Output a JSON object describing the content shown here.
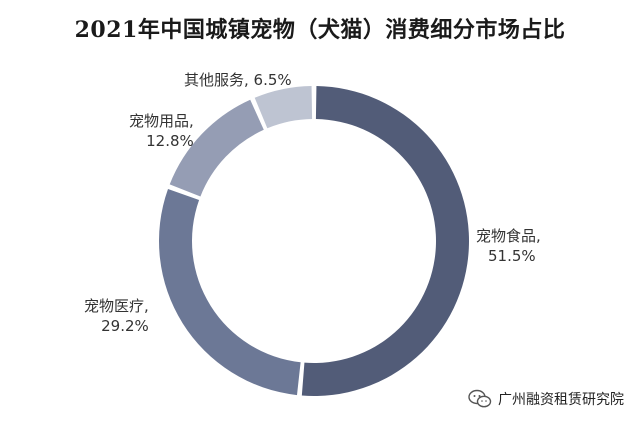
{
  "title": "2021年中国城镇宠物（犬猫）消费细分市场占比",
  "watermark": {
    "text": "广州融资租赁研究院",
    "icon": "wechat-icon"
  },
  "labels": {
    "food": {
      "name": "宠物食品,",
      "value": "51.5%"
    },
    "medical": {
      "name": "宠物医疗,",
      "value": "29.2%"
    },
    "supplies": {
      "name": "宠物用品,",
      "value": "12.8%"
    },
    "services": {
      "name": "其他服务, 6.5%"
    }
  },
  "chart_data": {
    "type": "pie",
    "variant": "donut",
    "title": "2021年中国城镇宠物（犬猫）消费细分市场占比",
    "slices": [
      {
        "label": "宠物食品",
        "value": 51.5,
        "color": "#525c78"
      },
      {
        "label": "宠物医疗",
        "value": 29.2,
        "color": "#6c7896"
      },
      {
        "label": "宠物用品",
        "value": 12.8,
        "color": "#959db4"
      },
      {
        "label": "其他服务",
        "value": 6.5,
        "color": "#bec4d2"
      }
    ],
    "start_angle_deg": 0,
    "direction": "clockwise"
  }
}
